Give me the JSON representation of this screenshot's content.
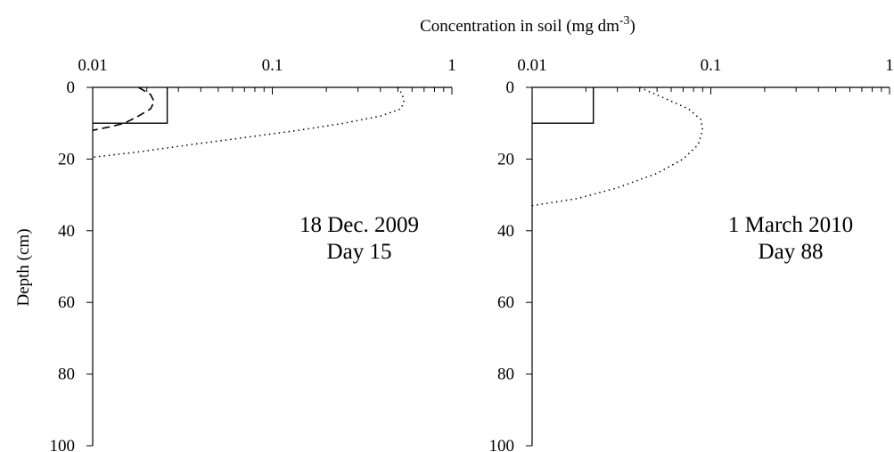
{
  "chart_data": {
    "shared": {
      "x_title_prefix": "Concentration in soil (mg dm",
      "x_title_exp": "-3",
      "x_title_suffix": ")",
      "ylabel": "Depth (cm)",
      "x_scale": "log",
      "xlim": [
        0.01,
        1
      ],
      "ylim": [
        0,
        100
      ],
      "y_inverted": true,
      "x_tick_labels": [
        "0.01",
        "0.1",
        "1"
      ],
      "y_tick_labels": [
        "0",
        "20",
        "40",
        "60",
        "80",
        "100"
      ],
      "grid": false,
      "color": "#000000"
    },
    "panels": [
      {
        "type": "line",
        "annotation_line1": "18 Dec. 2009",
        "annotation_line2": "Day 15",
        "series": [
          {
            "style": "solid",
            "points": [
              [
                0.026,
                0
              ],
              [
                0.026,
                10
              ],
              [
                0.01,
                10
              ]
            ]
          },
          {
            "style": "dashed",
            "points": [
              [
                0.018,
                0
              ],
              [
                0.021,
                2
              ],
              [
                0.022,
                4
              ],
              [
                0.021,
                6
              ],
              [
                0.018,
                8
              ],
              [
                0.015,
                10
              ],
              [
                0.0125,
                11
              ],
              [
                0.01,
                12
              ]
            ]
          },
          {
            "style": "dotted",
            "points": [
              [
                0.5,
                0
              ],
              [
                0.53,
                2
              ],
              [
                0.54,
                4
              ],
              [
                0.52,
                6
              ],
              [
                0.4,
                8
              ],
              [
                0.25,
                10
              ],
              [
                0.14,
                12
              ],
              [
                0.07,
                14
              ],
              [
                0.035,
                16
              ],
              [
                0.018,
                18
              ],
              [
                0.01,
                19.5
              ]
            ]
          }
        ]
      },
      {
        "type": "line",
        "annotation_line1": "1 March 2010",
        "annotation_line2": "Day 88",
        "series": [
          {
            "style": "solid",
            "points": [
              [
                0.022,
                0
              ],
              [
                0.022,
                10
              ],
              [
                0.01,
                10
              ]
            ]
          },
          {
            "style": "dotted",
            "points": [
              [
                0.04,
                0
              ],
              [
                0.055,
                3
              ],
              [
                0.075,
                6
              ],
              [
                0.088,
                9
              ],
              [
                0.09,
                12
              ],
              [
                0.085,
                16
              ],
              [
                0.07,
                20
              ],
              [
                0.05,
                24
              ],
              [
                0.03,
                28
              ],
              [
                0.018,
                31
              ],
              [
                0.01,
                33
              ]
            ]
          }
        ]
      }
    ]
  }
}
